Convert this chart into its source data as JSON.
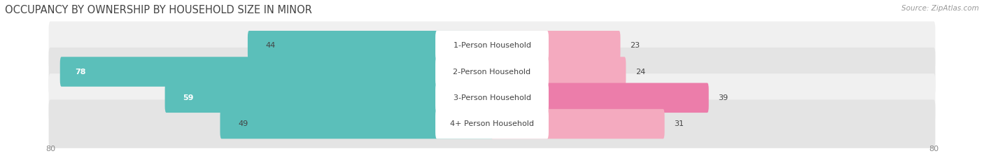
{
  "title": "OCCUPANCY BY OWNERSHIP BY HOUSEHOLD SIZE IN MINOR",
  "source": "Source: ZipAtlas.com",
  "categories": [
    "1-Person Household",
    "2-Person Household",
    "3-Person Household",
    "4+ Person Household"
  ],
  "owner_values": [
    44,
    78,
    59,
    49
  ],
  "renter_values": [
    23,
    24,
    39,
    31
  ],
  "axis_max": 80,
  "owner_color": "#5BBFBA",
  "renter_color_light": [
    "#F4AABF",
    "#F4AABF",
    "#EC7DAA",
    "#F4AABF"
  ],
  "renter_color_dark": "#EC7DAA",
  "row_bg_color_light": "#F0F0F0",
  "row_bg_color_dark": "#E4E4E4",
  "label_bg_color": "#FFFFFF",
  "title_fontsize": 10.5,
  "source_fontsize": 7.5,
  "tick_fontsize": 8,
  "bar_label_fontsize": 8,
  "legend_fontsize": 8,
  "category_fontsize": 8,
  "figsize": [
    14.06,
    2.33
  ],
  "dpi": 100
}
